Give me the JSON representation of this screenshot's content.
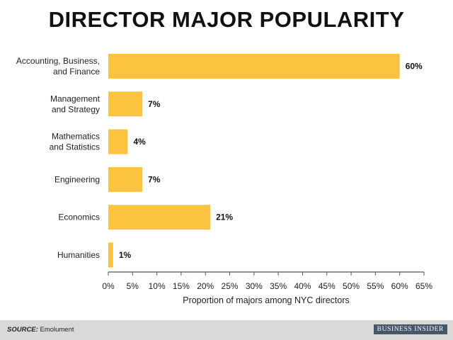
{
  "title": "DIRECTOR MAJOR POPULARITY",
  "footer": {
    "source_label": "SOURCE:",
    "source_value": "Emolument",
    "brand": "BUSINESS INSIDER"
  },
  "colors": {
    "bar": "#fbc33f",
    "axis": "#555555",
    "footer_bg": "#d9d9d9",
    "brand_bg": "#45576a"
  },
  "chart_data": {
    "type": "bar",
    "orientation": "horizontal",
    "title": "DIRECTOR MAJOR POPULARITY",
    "xlabel": "Proportion of majors among NYC directors",
    "ylabel": "",
    "xlim": [
      0,
      65
    ],
    "grid": false,
    "categories": [
      [
        "Accounting, Business,",
        "and Finance"
      ],
      [
        "Management",
        "and Strategy"
      ],
      [
        "Mathematics",
        "and Statistics"
      ],
      [
        "Engineering"
      ],
      [
        "Economics"
      ],
      [
        "Humanities"
      ]
    ],
    "values": [
      60,
      7,
      4,
      7,
      21,
      1
    ],
    "value_labels": [
      "60%",
      "7%",
      "4%",
      "7%",
      "21%",
      "1%"
    ],
    "ticks": [
      0,
      5,
      10,
      15,
      20,
      25,
      30,
      35,
      40,
      45,
      50,
      55,
      60,
      65
    ],
    "tick_labels": [
      "0%",
      "5%",
      "10%",
      "15%",
      "20%",
      "25%",
      "30%",
      "35%",
      "40%",
      "45%",
      "50%",
      "55%",
      "60%",
      "65%"
    ]
  }
}
